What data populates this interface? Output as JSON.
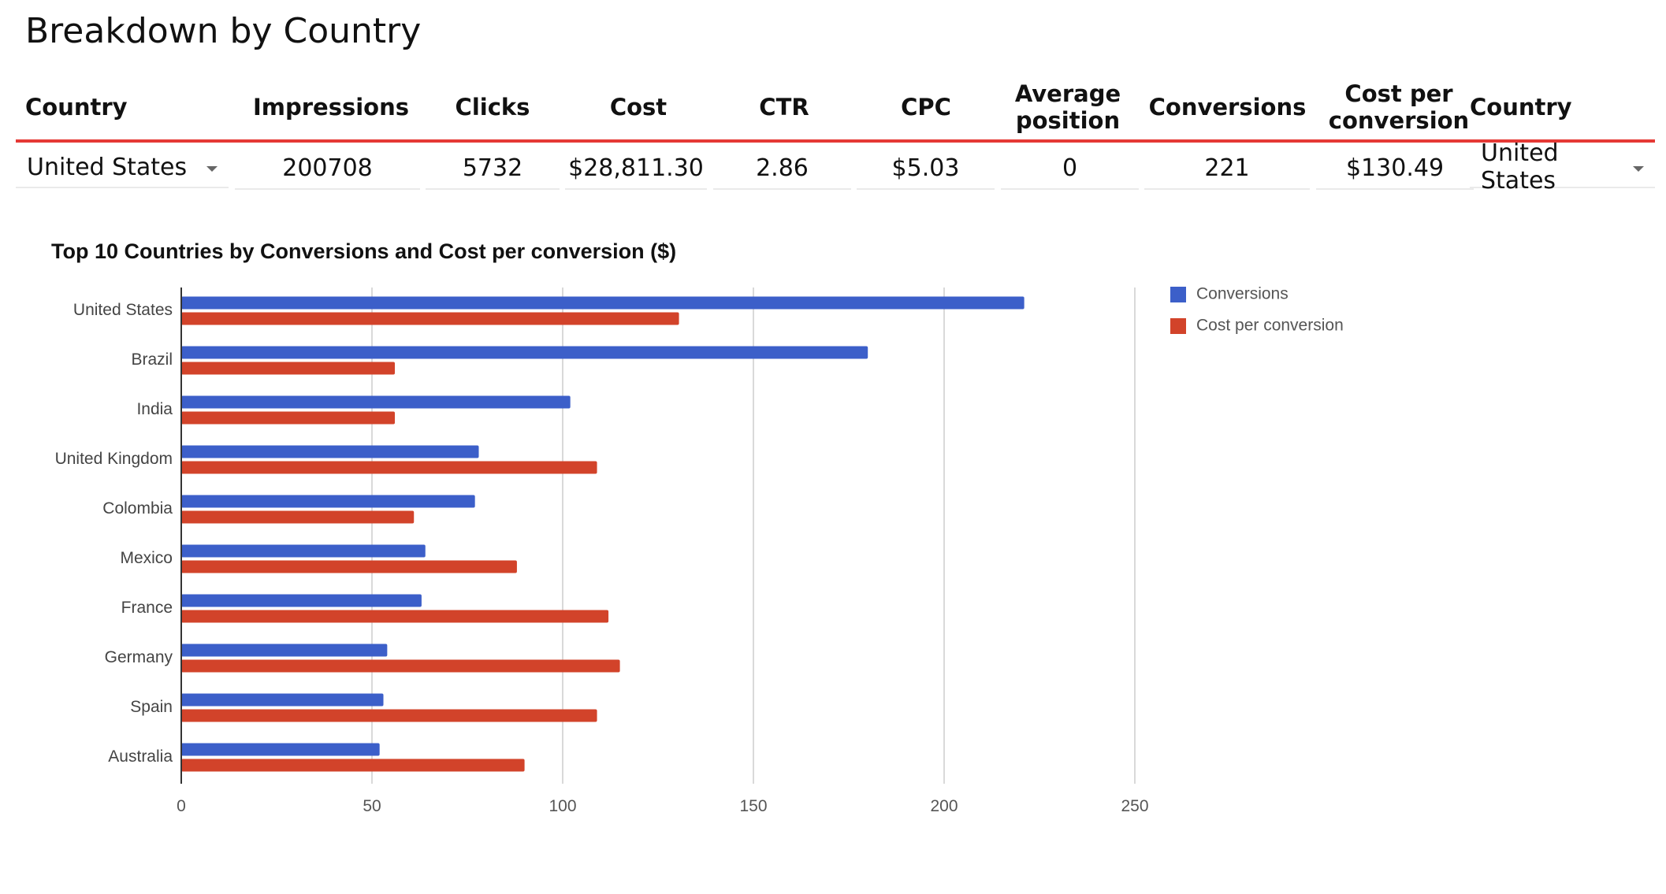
{
  "page": {
    "title": "Breakdown by Country"
  },
  "table": {
    "columns": [
      "Country",
      "Impressions",
      "Clicks",
      "Cost",
      "CTR",
      "CPC",
      "Average position",
      "Conversions",
      "Cost per conversion",
      "Country"
    ],
    "row": {
      "country": "United States",
      "impressions": "200708",
      "clicks": "5732",
      "cost": "$28,811.30",
      "ctr": "2.86",
      "cpc": "$5.03",
      "average_position": "0",
      "conversions": "221",
      "cost_per_conversion": "$130.49",
      "country2": "United States"
    }
  },
  "chart_data": {
    "type": "bar",
    "orientation": "horizontal",
    "title": "Top 10 Countries by Conversions and Cost per conversion ($)",
    "categories": [
      "United States",
      "Brazil",
      "India",
      "United Kingdom",
      "Colombia",
      "Mexico",
      "France",
      "Germany",
      "Spain",
      "Australia"
    ],
    "series": [
      {
        "name": "Conversions",
        "color": "#3c5fc9",
        "values": [
          221,
          180,
          102,
          78,
          77,
          64,
          63,
          54,
          53,
          52
        ]
      },
      {
        "name": "Cost per conversion",
        "color": "#d2432a",
        "values": [
          130.49,
          56,
          56,
          109,
          61,
          88,
          112,
          115,
          109,
          90
        ]
      }
    ],
    "xlim": [
      0,
      250
    ],
    "xticks": [
      "0",
      "50",
      "100",
      "150",
      "200",
      "250"
    ],
    "grid": true,
    "legend": "right"
  }
}
